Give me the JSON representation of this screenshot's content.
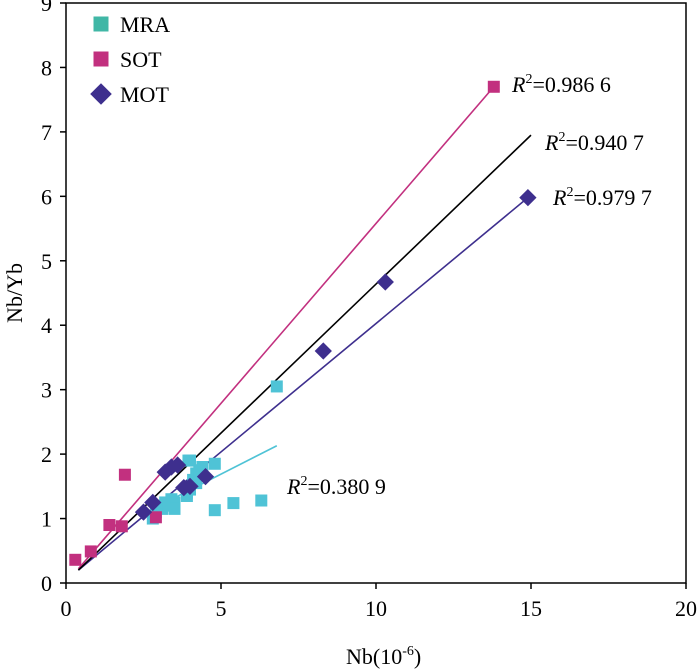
{
  "chart_data": {
    "type": "scatter",
    "title": "",
    "xlabel": {
      "base": "Nb(10",
      "exp": "-6",
      "tail": ")"
    },
    "ylabel": "Nb/Yb",
    "xlim": [
      0,
      20
    ],
    "ylim": [
      0,
      9
    ],
    "xticks": [
      "0",
      "5",
      "10",
      "15",
      "20"
    ],
    "yticks": [
      "0",
      "1",
      "2",
      "3",
      "4",
      "5",
      "6",
      "7",
      "8",
      "9"
    ],
    "grid": false,
    "legend_position": "top-left",
    "series": [
      {
        "name": "MRA",
        "marker": "square",
        "color": "#4fc3d6",
        "legend_color": "#40b7a6",
        "points": [
          [
            2.8,
            1.0
          ],
          [
            2.9,
            1.1
          ],
          [
            3.0,
            1.2
          ],
          [
            3.1,
            1.15
          ],
          [
            3.2,
            1.25
          ],
          [
            3.3,
            1.2
          ],
          [
            3.4,
            1.3
          ],
          [
            3.5,
            1.25
          ],
          [
            3.9,
            1.4
          ],
          [
            4.0,
            1.45
          ],
          [
            4.1,
            1.6
          ],
          [
            4.2,
            1.7
          ],
          [
            4.3,
            1.75
          ],
          [
            4.4,
            1.8
          ],
          [
            4.0,
            1.9
          ],
          [
            3.95,
            1.9
          ],
          [
            4.8,
            1.85
          ],
          [
            4.8,
            1.13
          ],
          [
            5.4,
            1.24
          ],
          [
            6.3,
            1.28
          ],
          [
            6.8,
            3.05
          ],
          [
            3.5,
            1.15
          ],
          [
            3.9,
            1.35
          ],
          [
            4.2,
            1.55
          ]
        ],
        "fit": {
          "x": [
            3.0,
            6.8
          ],
          "y": [
            1.2,
            2.13
          ],
          "color": "#4fc3d6",
          "r2": {
            "prefix": "R",
            "sup": "2",
            "value": "=0.380 9"
          }
        }
      },
      {
        "name": "SOT",
        "marker": "square",
        "color": "#c2307f",
        "points": [
          [
            0.3,
            0.36
          ],
          [
            0.8,
            0.49
          ],
          [
            1.4,
            0.9
          ],
          [
            1.8,
            0.88
          ],
          [
            1.9,
            1.68
          ],
          [
            2.9,
            1.02
          ],
          [
            13.8,
            7.7
          ]
        ],
        "fit": {
          "x": [
            0.4,
            13.8
          ],
          "y": [
            0.22,
            7.7
          ],
          "color": "#c2307f",
          "r2": {
            "prefix": "R",
            "sup": "2",
            "value": "=0.986 6"
          }
        }
      },
      {
        "name": "MOT",
        "marker": "diamond",
        "color": "#3e2f8e",
        "points": [
          [
            2.5,
            1.1
          ],
          [
            2.8,
            1.25
          ],
          [
            3.2,
            1.72
          ],
          [
            3.4,
            1.8
          ],
          [
            3.6,
            1.83
          ],
          [
            3.8,
            1.48
          ],
          [
            4.0,
            1.5
          ],
          [
            4.5,
            1.65
          ],
          [
            8.3,
            3.6
          ],
          [
            10.3,
            4.67
          ],
          [
            14.9,
            5.98
          ]
        ],
        "fit": {
          "x": [
            0.4,
            14.9
          ],
          "y": [
            0.2,
            5.98
          ],
          "color": "#3e2f8e",
          "r2": {
            "prefix": "R",
            "sup": "2",
            "value": "=0.979 7"
          }
        }
      }
    ],
    "overall_fit": {
      "x": [
        0.4,
        15.0
      ],
      "y": [
        0.2,
        6.95
      ],
      "color": "#000000",
      "r2": {
        "prefix": "R",
        "sup": "2",
        "value": "=0.940 7"
      }
    }
  }
}
